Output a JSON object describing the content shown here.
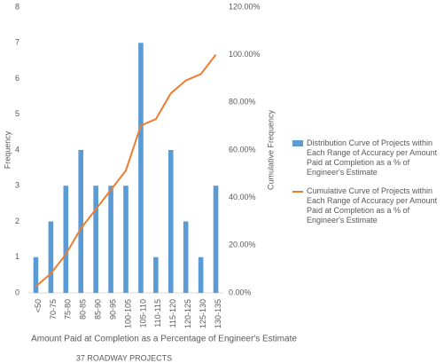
{
  "chart_data": {
    "type": "bar",
    "categories": [
      "<50",
      "70-75",
      "75-80",
      "80-85",
      "85-90",
      "90-95",
      "100-105",
      "105-110",
      "110-115",
      "115-120",
      "120-125",
      "125-130",
      "130-135"
    ],
    "series": [
      {
        "name": "Distribution Curve of Projects within Each Range of Accuracy per Amount Paid at Completion as  a % of Engineer's Estimate",
        "type": "bar",
        "color": "#5b9bd5",
        "values": [
          1,
          2,
          3,
          4,
          3,
          3,
          3,
          7,
          1,
          4,
          2,
          1,
          3
        ]
      },
      {
        "name": "Cumulative Curve of Projects within Each Range of Accuracy per Amount Paid at Completion as  a % of Engineer's Estimate",
        "type": "line",
        "axis": "y2",
        "color": "#ed7d31",
        "values": [
          2.7,
          8.11,
          16.22,
          27.03,
          35.14,
          43.24,
          51.35,
          70.27,
          72.97,
          83.78,
          89.19,
          91.89,
          100
        ]
      }
    ],
    "ylabel": "Frequency",
    "y2label": "Cumulative Frequency",
    "xlabel": "Amount Paid at Completion as a Percentage of Engineer's Estimate",
    "subtitle": "37 ROADWAY PROJECTS",
    "ylim": [
      0,
      8
    ],
    "yticks": [
      0,
      1,
      2,
      3,
      4,
      5,
      6,
      7,
      8
    ],
    "y2lim": [
      0,
      120
    ],
    "y2ticks": [
      {
        "value": 0,
        "label": "0.00%"
      },
      {
        "value": 20,
        "label": "20.00%"
      },
      {
        "value": 40,
        "label": "40.00%"
      },
      {
        "value": 60,
        "label": "60.00%"
      },
      {
        "value": 80,
        "label": "80.00%"
      },
      {
        "value": 100,
        "label": "100.00%"
      },
      {
        "value": 120,
        "label": "120.00%"
      }
    ],
    "grid": false,
    "legend": "right"
  }
}
